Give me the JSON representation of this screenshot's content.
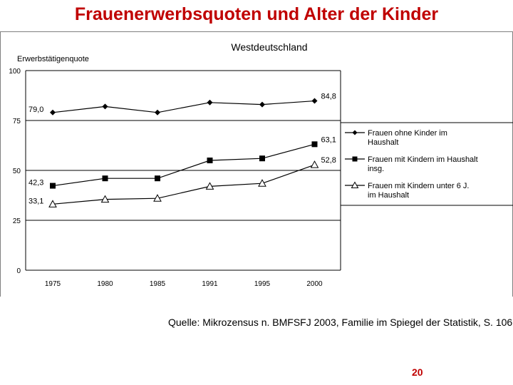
{
  "slide": {
    "title": "Frauenerwerbsquoten und Alter der Kinder",
    "source": "Quelle: Mikrozensus n. BMFSFJ 2003, Familie im Spiegel der Statistik, S. 106",
    "page_number": "20"
  },
  "chart_data": {
    "type": "line",
    "title": "Westdeutschland",
    "ylabel": "Erwerbstätigenquote",
    "xlabel": "",
    "ylim": [
      0,
      100
    ],
    "yticks": [
      0,
      25,
      50,
      75,
      100
    ],
    "grid": "horizontal",
    "legend_position": "right",
    "categories": [
      "1975",
      "1980",
      "1985",
      "1991",
      "1995",
      "2000"
    ],
    "series": [
      {
        "name": "Frauen ohne Kinder im Haushalt",
        "name_lines": [
          "Frauen ohne Kinder im",
          "Haushalt"
        ],
        "marker": "diamond",
        "values": [
          79.0,
          82,
          79,
          84,
          83,
          84.8
        ],
        "labels": {
          "0": "79,0",
          "5": "84,8"
        }
      },
      {
        "name": "Frauen mit Kindern im Haushalt insg.",
        "name_lines": [
          "Frauen mit Kindern im Haushalt",
          "insg."
        ],
        "marker": "square",
        "values": [
          42.3,
          46,
          46,
          55,
          56,
          63.1
        ],
        "labels": {
          "0": "42,3",
          "5": "63,1"
        }
      },
      {
        "name": "Frauen mit Kindern unter 6 J. im Haushalt",
        "name_lines": [
          "Frauen mit Kindern unter 6 J.",
          "im Haushalt"
        ],
        "marker": "triangle",
        "values": [
          33.1,
          35.5,
          36,
          42,
          43.5,
          52.8
        ],
        "labels": {
          "0": "33,1",
          "5": "52,8"
        }
      }
    ],
    "colors": {
      "line": "#000000",
      "grid": "#000000",
      "background": "#ffffff",
      "frame_border": "#808080"
    }
  }
}
